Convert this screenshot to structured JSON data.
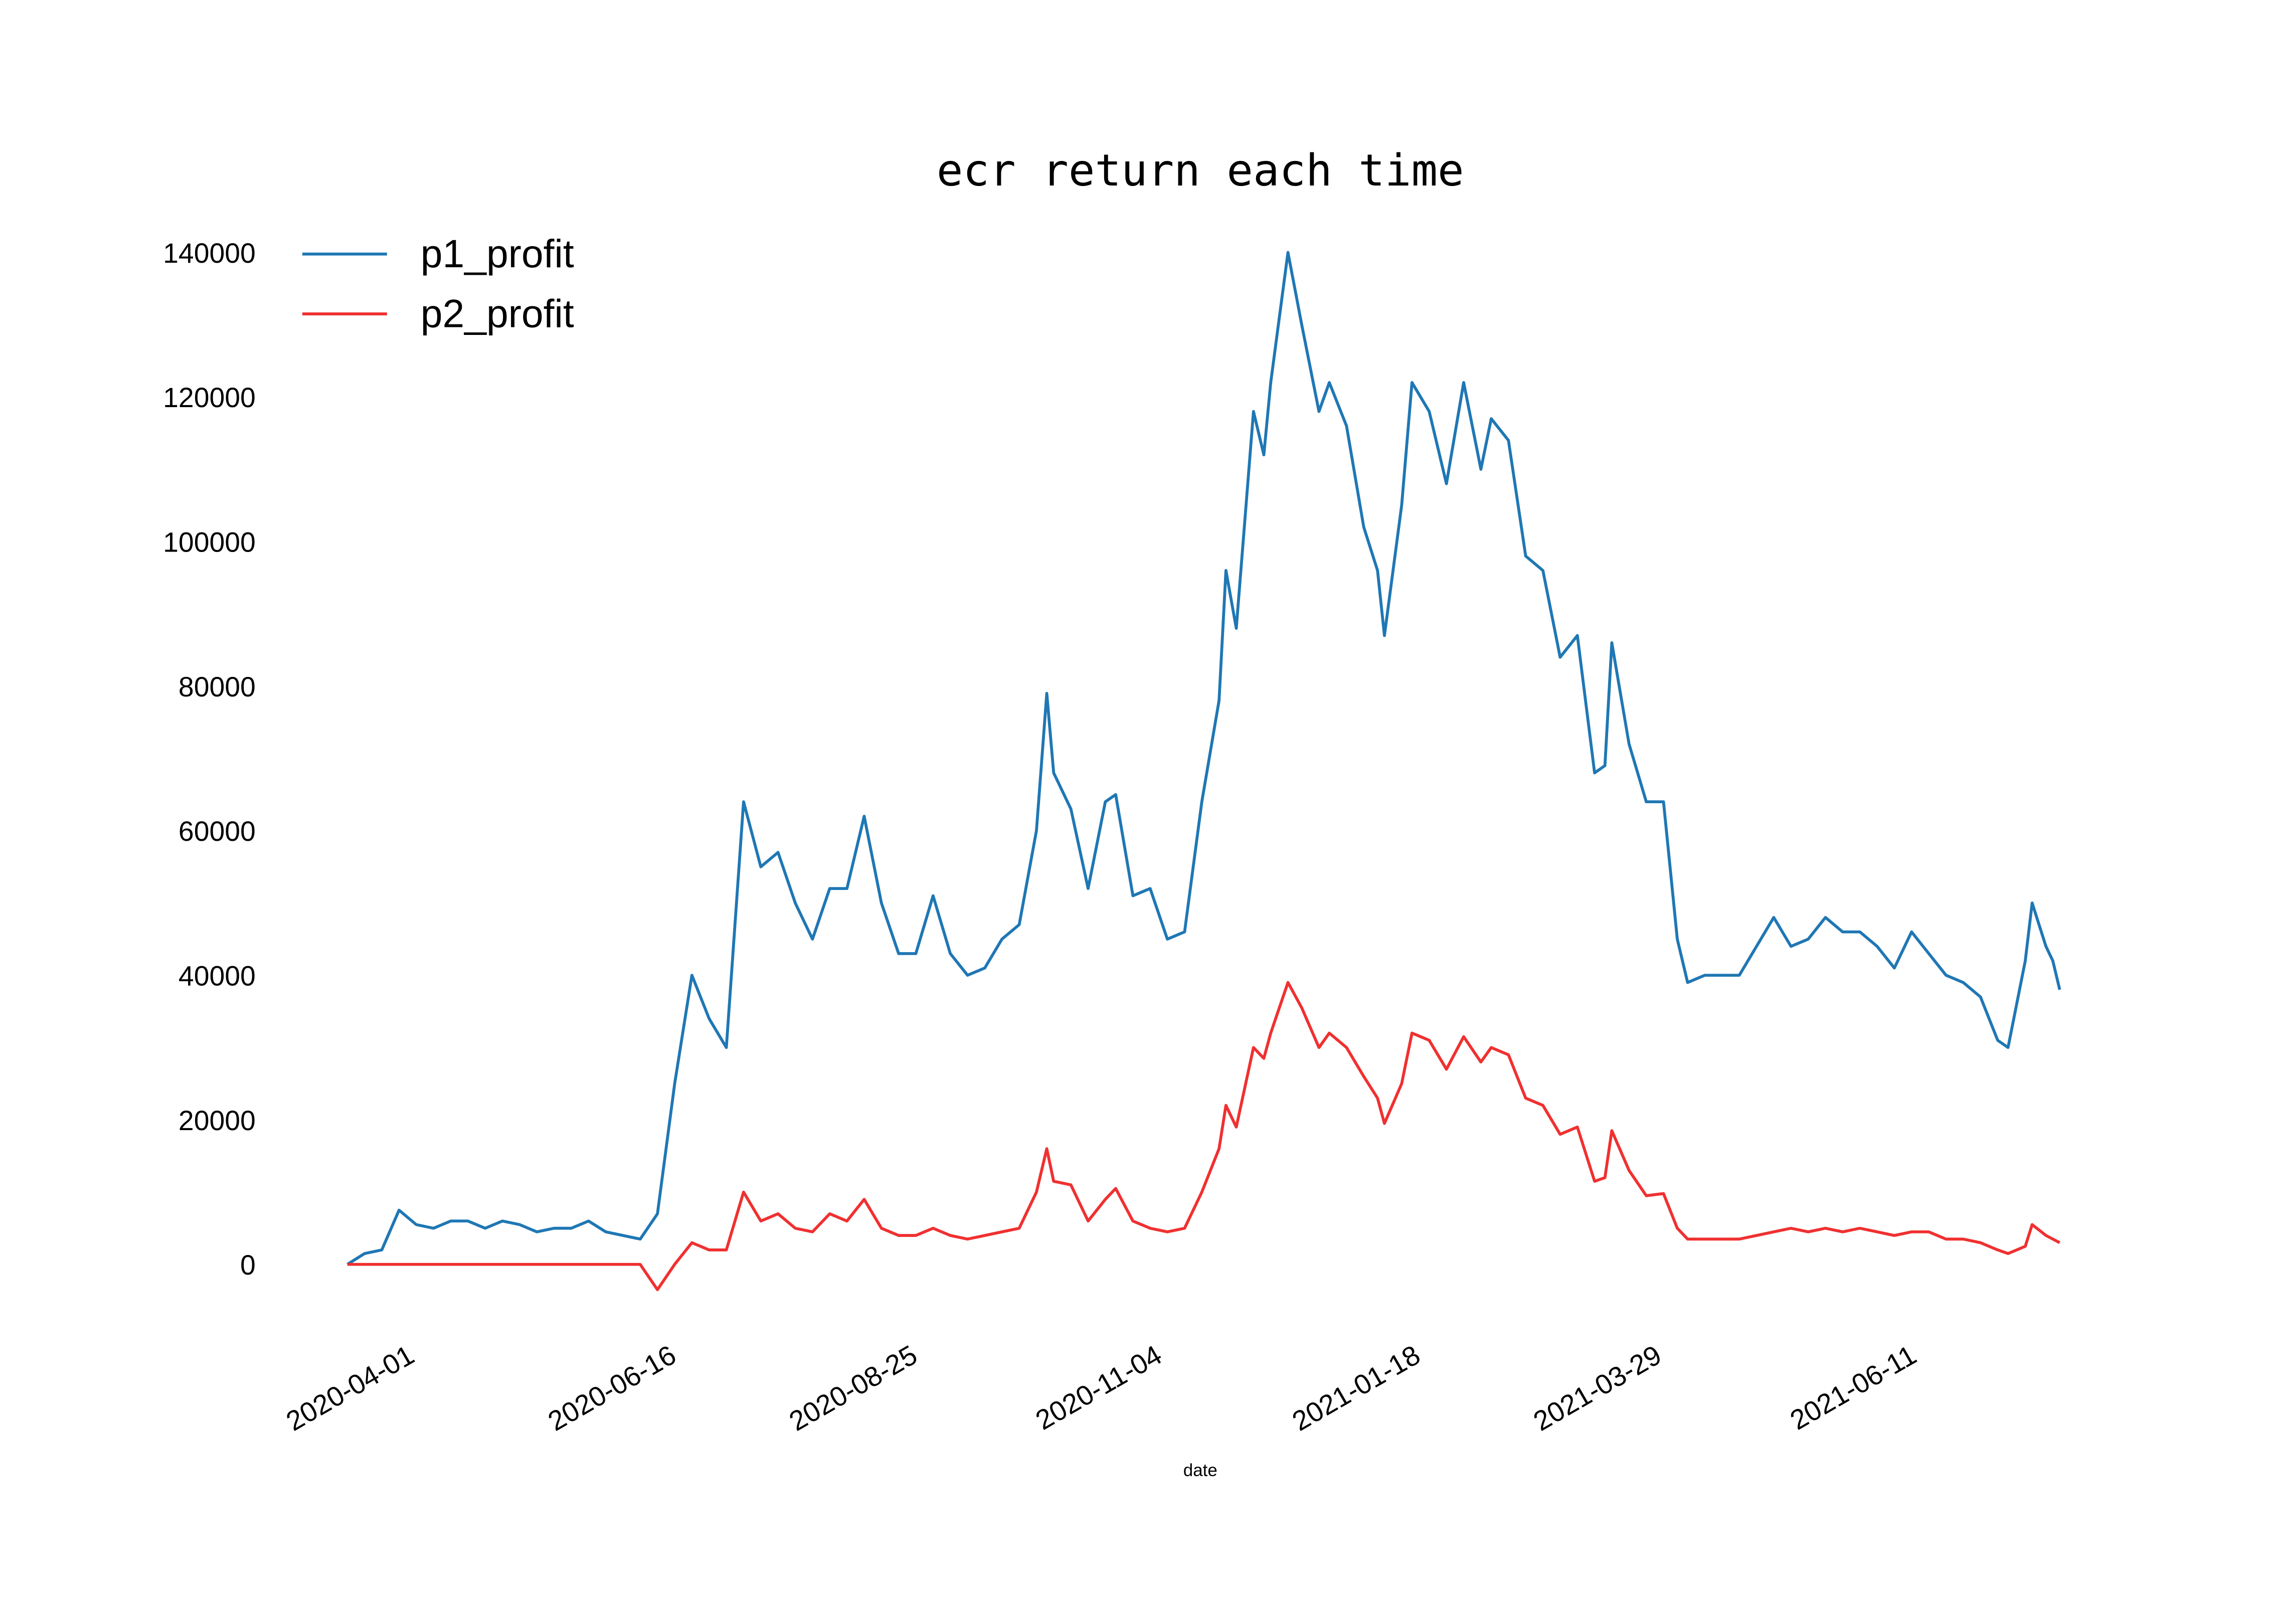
{
  "chart_data": {
    "type": "line",
    "title": "ecr return each time",
    "x_label": "date",
    "legend": "upper left",
    "grid": false,
    "xlim": [
      "2020-03-08",
      "2021-07-26"
    ],
    "xticks": [
      "2020-04-01",
      "2020-06-16",
      "2020-08-25",
      "2020-11-04",
      "2021-01-18",
      "2021-03-29",
      "2021-06-11"
    ],
    "ylim": [
      -10000,
      142000
    ],
    "yticks": [
      0,
      20000,
      40000,
      60000,
      80000,
      100000,
      120000,
      140000
    ],
    "x": [
      "2020-03-12",
      "2020-03-17",
      "2020-03-22",
      "2020-03-27",
      "2020-04-01",
      "2020-04-06",
      "2020-04-11",
      "2020-04-16",
      "2020-04-21",
      "2020-04-26",
      "2020-05-01",
      "2020-05-06",
      "2020-05-11",
      "2020-05-16",
      "2020-05-21",
      "2020-05-26",
      "2020-05-31",
      "2020-06-05",
      "2020-06-10",
      "2020-06-15",
      "2020-06-20",
      "2020-06-25",
      "2020-06-30",
      "2020-07-05",
      "2020-07-10",
      "2020-07-15",
      "2020-07-20",
      "2020-07-25",
      "2020-07-30",
      "2020-08-04",
      "2020-08-09",
      "2020-08-14",
      "2020-08-19",
      "2020-08-24",
      "2020-08-29",
      "2020-09-03",
      "2020-09-08",
      "2020-09-13",
      "2020-09-18",
      "2020-09-23",
      "2020-09-28",
      "2020-10-01",
      "2020-10-03",
      "2020-10-08",
      "2020-10-13",
      "2020-10-18",
      "2020-10-21",
      "2020-10-26",
      "2020-10-31",
      "2020-11-05",
      "2020-11-10",
      "2020-11-15",
      "2020-11-20",
      "2020-11-22",
      "2020-11-25",
      "2020-11-30",
      "2020-12-03",
      "2020-12-05",
      "2020-12-10",
      "2020-12-14",
      "2020-12-19",
      "2020-12-22",
      "2020-12-27",
      "2021-01-01",
      "2021-01-05",
      "2021-01-07",
      "2021-01-12",
      "2021-01-15",
      "2021-01-20",
      "2021-01-25",
      "2021-01-30",
      "2021-02-04",
      "2021-02-07",
      "2021-02-12",
      "2021-02-17",
      "2021-02-22",
      "2021-02-27",
      "2021-03-04",
      "2021-03-09",
      "2021-03-12",
      "2021-03-14",
      "2021-03-19",
      "2021-03-24",
      "2021-03-29",
      "2021-04-02",
      "2021-04-05",
      "2021-04-10",
      "2021-04-15",
      "2021-04-20",
      "2021-04-25",
      "2021-04-30",
      "2021-05-05",
      "2021-05-10",
      "2021-05-15",
      "2021-05-20",
      "2021-05-25",
      "2021-05-30",
      "2021-06-04",
      "2021-06-09",
      "2021-06-14",
      "2021-06-19",
      "2021-06-24",
      "2021-06-29",
      "2021-07-04",
      "2021-07-07",
      "2021-07-12",
      "2021-07-14",
      "2021-07-18",
      "2021-07-20",
      "2021-07-22"
    ],
    "series": [
      {
        "name": "p1_profit",
        "color": "#1f77b4",
        "values": [
          0,
          1500,
          2000,
          7500,
          5500,
          5000,
          6000,
          6000,
          5000,
          6000,
          5500,
          4500,
          5000,
          5000,
          6000,
          4500,
          4000,
          3500,
          7000,
          25000,
          40000,
          34000,
          30000,
          64000,
          55000,
          57000,
          50000,
          45000,
          52000,
          52000,
          62000,
          50000,
          43000,
          43000,
          51000,
          43000,
          40000,
          41000,
          45000,
          47000,
          60000,
          79000,
          68000,
          63000,
          52000,
          64000,
          65000,
          51000,
          52000,
          45000,
          46000,
          64000,
          78000,
          96000,
          88000,
          118000,
          112000,
          122000,
          140000,
          130000,
          118000,
          122000,
          116000,
          102000,
          96000,
          87000,
          105000,
          122000,
          118000,
          108000,
          122000,
          110000,
          117000,
          114000,
          98000,
          96000,
          84000,
          87000,
          68000,
          69000,
          86000,
          72000,
          64000,
          64000,
          45000,
          39000,
          40000,
          40000,
          40000,
          44000,
          48000,
          44000,
          45000,
          48000,
          46000,
          46000,
          44000,
          41000,
          46000,
          43000,
          40000,
          39000,
          37000,
          31000,
          30000,
          42000,
          50000,
          44000,
          42000,
          38000
        ]
      },
      {
        "name": "p2_profit",
        "color": "#f03030",
        "values": [
          0,
          0,
          0,
          0,
          0,
          0,
          0,
          0,
          0,
          0,
          0,
          0,
          0,
          0,
          0,
          0,
          0,
          0,
          -3500,
          0,
          3000,
          2000,
          2000,
          10000,
          6000,
          7000,
          5000,
          4500,
          7000,
          6000,
          9000,
          5000,
          4000,
          4000,
          5000,
          4000,
          3500,
          4000,
          4500,
          5000,
          10000,
          16000,
          11500,
          11000,
          6000,
          9000,
          10500,
          6000,
          5000,
          4500,
          5000,
          10000,
          16000,
          22000,
          19000,
          30000,
          28500,
          32000,
          39000,
          35500,
          30000,
          32000,
          30000,
          26000,
          23000,
          19500,
          25000,
          32000,
          31000,
          27000,
          31500,
          28000,
          30000,
          29000,
          23000,
          22000,
          18000,
          19000,
          11500,
          12000,
          18500,
          13000,
          9500,
          9800,
          5000,
          3500,
          3500,
          3500,
          3500,
          4000,
          4500,
          5000,
          4500,
          5000,
          4500,
          5000,
          4500,
          4000,
          4500,
          4500,
          3500,
          3500,
          3000,
          2000,
          1500,
          2500,
          5500,
          4000,
          3500,
          3000
        ]
      }
    ]
  }
}
